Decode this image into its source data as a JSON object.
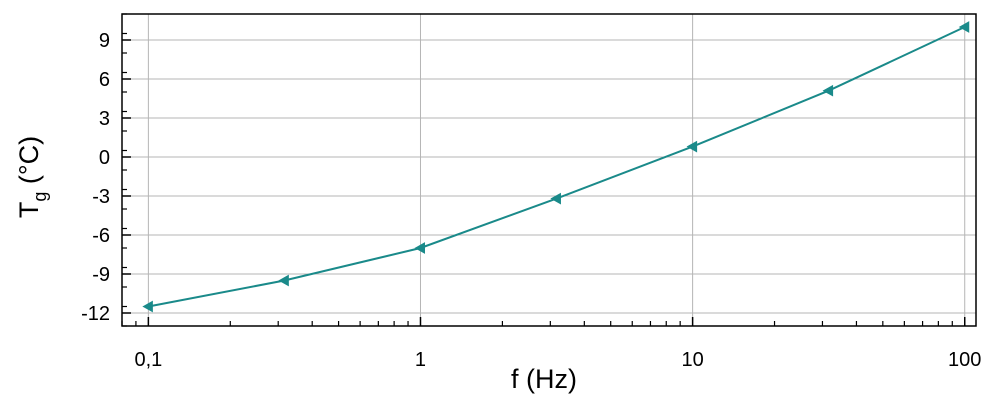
{
  "chart_data": {
    "type": "line",
    "xscale": "log",
    "xlim": [
      0.08,
      110
    ],
    "ylim": [
      -13,
      11
    ],
    "grid": true,
    "color": "#1a8a8a",
    "marker": "left-triangle",
    "xlabel": "f (Hz)",
    "ylabel": {
      "main": "T",
      "sub": "g",
      "suffix": " (°C)"
    },
    "x_ticks": [
      {
        "value": 0.1,
        "label": "0,1"
      },
      {
        "value": 1,
        "label": "1"
      },
      {
        "value": 10,
        "label": "10"
      },
      {
        "value": 100,
        "label": "100"
      }
    ],
    "y_ticks": [
      {
        "value": 9,
        "label": "9"
      },
      {
        "value": 6,
        "label": "6"
      },
      {
        "value": 3,
        "label": "3"
      },
      {
        "value": 0,
        "label": "0"
      },
      {
        "value": -3,
        "label": "-3"
      },
      {
        "value": -6,
        "label": "-6"
      },
      {
        "value": -9,
        "label": "-9"
      },
      {
        "value": -12,
        "label": "-12"
      }
    ],
    "series": [
      {
        "x": [
          0.1,
          0.316,
          1,
          3.16,
          10,
          31.6,
          100
        ],
        "y": [
          -11.5,
          -9.5,
          -7.0,
          -3.2,
          0.8,
          5.1,
          10.0
        ]
      }
    ]
  }
}
